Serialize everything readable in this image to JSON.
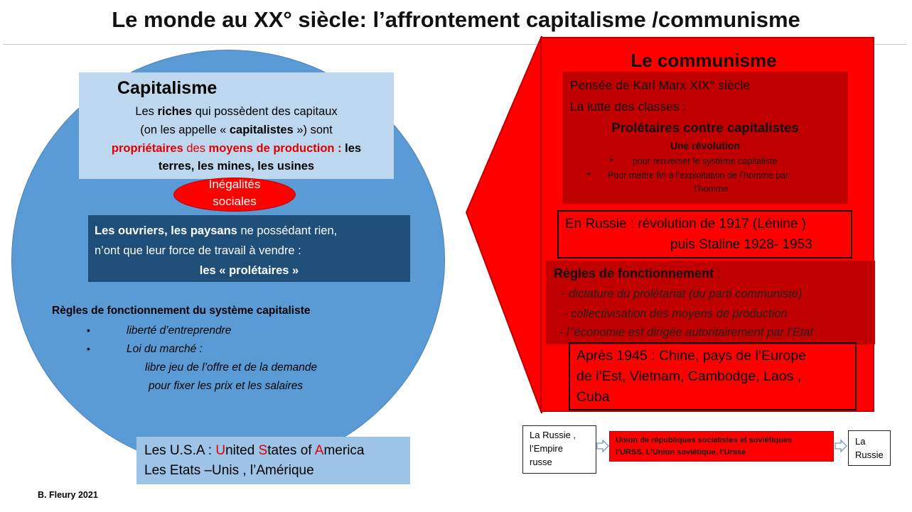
{
  "title": "Le monde au XX° siècle: l’affrontement capitalisme /communisme",
  "capitalisme": {
    "heading": "Capitalisme",
    "line1_a": "Les ",
    "line1_b": "riches",
    "line1_c": " qui possèdent des capitaux",
    "line2_a": "(on les appelle « ",
    "line2_b": "capitalistes",
    "line2_c": " ») sont",
    "line3_a": "propriétaires",
    "line3_b": " des ",
    "line3_c": "moyens de production :",
    "line3_d": " les",
    "line4": "terres, les mines, les usines",
    "inegalites": [
      "Inégalités",
      "sociales"
    ],
    "workers_line1_a": "Les ouvriers, les paysans",
    "workers_line1_b": " ne possédant rien,",
    "workers_line2": "n’ont que leur force de travail  à vendre  :",
    "workers_line3": "les « prolétaires »",
    "rules_title": "Règles de fonctionnement du système capitaliste",
    "bullet": "•",
    "rule1": "liberté d’entreprendre",
    "rule2": "Loi du marché  :",
    "rule2_sub1": "libre jeu de l’offre et de la demande",
    "rule2_sub2": "pour fixer les prix et les salaires",
    "usa_a": "Les U.S.A :  ",
    "usa_u": "U",
    "usa_b": "nited ",
    "usa_s": "S",
    "usa_c": "tates of ",
    "usa_am": "A",
    "usa_d": "merica",
    "usa_line2": "Les Etats –Unis , l’Amérique"
  },
  "communisme": {
    "heading": "Le communisme",
    "marx_line1": "Pensée de Karl Marx  XIX° siècle",
    "marx_line2": "La lutte des classes  :",
    "marx_line3": "Prolétaires  contre capitalistes",
    "marx_line4": "Une révolution",
    "bullet": "•",
    "marx_bullet1": "pour renverser le système capitaliste",
    "marx_bullet2a": "Pour mettre fin à l’exploitation de l’homme par",
    "marx_bullet2b": "l’homme",
    "russia_line1": "En Russie  : révolution  de 1917 (Lénine )",
    "russia_line2": "puis  Staline 1928- 1953",
    "rules_title": "Règles de fonctionnement",
    "rules_colon": " :",
    "rule1": "- dictature du prolétariat (du parti communiste)",
    "rule2": "- collectivisation des moyens de production",
    "rule3": "- l’’économie est dirigée autoritairement par l’Etat",
    "after_line1": "Après 1945 : Chine, pays de l’Europe",
    "after_line2": "de l’Est, Vietnam, Cambodge, Laos ,",
    "after_line3": "Cuba"
  },
  "timeline": {
    "empire": [
      "La Russie ,",
      "l’Empire",
      "russe"
    ],
    "ussr_line1": "Union de républiques socialistes et soviétiques",
    "ussr_line2": "l’URSS, L’Union soviétique, l’Ursse",
    "russia": [
      "La",
      "Russie"
    ]
  },
  "author": "B. Fleury 2021",
  "colors": {
    "circle_blue": "#5b9bd5",
    "light_blue": "#bdd7ee",
    "dark_blue": "#1f4e79",
    "usa_blue": "#9dc3e6",
    "red": "#ff0000",
    "dark_red": "#c00000"
  }
}
